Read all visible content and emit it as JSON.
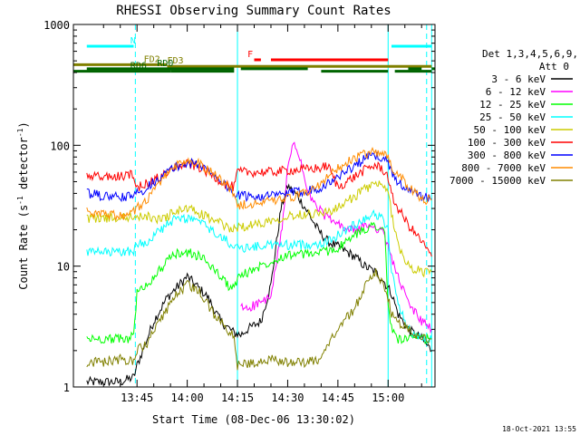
{
  "chart_data": {
    "type": "line",
    "title": "RHESSI Observing Summary Count Rates",
    "xlabel": "Start Time (08-Dec-06 13:30:02)",
    "ylabel": "Count Rate (s⁻¹ detector⁻¹)",
    "ylabel_parts": [
      "Count Rate (s",
      "-1",
      " detector",
      "-1",
      ")"
    ],
    "yscale": "log",
    "ylim": [
      1,
      1000
    ],
    "xlim_min": [
      0,
      67
    ],
    "x_ticks": [
      {
        "at": 15,
        "label": "13:45"
      },
      {
        "at": 30,
        "label": "14:00"
      },
      {
        "at": 45,
        "label": "14:15"
      },
      {
        "at": 60,
        "label": "14:30"
      },
      {
        "at": 75,
        "label": "14:45"
      },
      {
        "at": 90,
        "label": "15:00"
      }
    ],
    "y_ticks": [
      {
        "at": 1,
        "label": "1"
      },
      {
        "at": 10,
        "label": "10"
      },
      {
        "at": 100,
        "label": "100"
      },
      {
        "at": 1000,
        "label": "1000"
      }
    ],
    "legend_header": [
      "Det 1,3,4,5,6,9,",
      "Att 0"
    ],
    "legend_position": "right",
    "timestamp": "18-Oct-2021 13:55",
    "series": [
      {
        "name": "3 - 6 keV",
        "color": "#000000",
        "x": [
          0,
          10,
          14,
          15,
          20,
          24,
          30,
          36,
          40,
          44,
          46,
          48,
          52,
          55,
          58,
          60,
          63,
          66,
          69,
          72,
          76,
          80,
          83,
          86,
          88,
          91,
          93,
          96,
          100,
          103
        ],
        "y": [
          1.1,
          1.1,
          1.2,
          1.5,
          3.5,
          5.5,
          8.2,
          5.6,
          3.5,
          2.8,
          2.7,
          3,
          3.5,
          7,
          30,
          46,
          38,
          28,
          20,
          16,
          14,
          12,
          10,
          9,
          8,
          6,
          4,
          3,
          2.5,
          2
        ]
      },
      {
        "name": "6 - 12 keV",
        "color": "#ff00ff",
        "x": [
          46,
          48,
          52,
          55,
          58,
          60,
          61,
          62,
          63,
          64,
          66,
          69,
          72,
          75,
          78,
          81,
          84,
          86,
          88,
          91,
          93,
          96,
          100,
          103
        ],
        "y": [
          4.5,
          4.5,
          5,
          5.5,
          18,
          60,
          90,
          100,
          90,
          70,
          40,
          30,
          25,
          22,
          20,
          20,
          22,
          21,
          20,
          12,
          8,
          5,
          3.5,
          3
        ]
      },
      {
        "name": "12 - 25 keV",
        "color": "#00ff00",
        "x": [
          0,
          4,
          8,
          12,
          14,
          15,
          18,
          22,
          26,
          30,
          34,
          38,
          42,
          44,
          45,
          50,
          55,
          60,
          65,
          70,
          75,
          80,
          84,
          86,
          88,
          89,
          90,
          91,
          93,
          96,
          100,
          103
        ],
        "y": [
          2.5,
          2.5,
          2.5,
          2.5,
          2.7,
          6,
          7,
          9.5,
          12.5,
          13,
          12,
          9.5,
          7,
          6.5,
          8,
          9.5,
          11,
          12.5,
          12.5,
          13,
          14,
          18,
          21,
          22,
          21,
          18,
          5,
          3,
          2.5,
          2.5,
          2.5,
          2.5
        ]
      },
      {
        "name": "25 - 50 keV",
        "color": "#00ffff",
        "x": [
          0,
          5,
          10,
          14,
          15,
          18,
          22,
          26,
          30,
          34,
          38,
          42,
          44,
          45,
          50,
          55,
          60,
          65,
          70,
          72,
          75,
          80,
          84,
          86,
          88,
          90,
          91,
          93,
          96,
          100,
          103
        ],
        "y": [
          13,
          13,
          13,
          13.5,
          15,
          16,
          20,
          24,
          25,
          23,
          19,
          16,
          15,
          14,
          14.5,
          15,
          15,
          15,
          15.5,
          16,
          18,
          22,
          26,
          27,
          25,
          20,
          9,
          5,
          3,
          2.5,
          2.5
        ]
      },
      {
        "name": "50 - 100 keV",
        "color": "#cccc00",
        "x": [
          0,
          5,
          10,
          14,
          15,
          18,
          22,
          26,
          30,
          34,
          38,
          42,
          44,
          45,
          50,
          55,
          60,
          65,
          70,
          72,
          75,
          80,
          84,
          86,
          88,
          90,
          91,
          93,
          96,
          100,
          103
        ],
        "y": [
          25,
          25,
          25,
          26,
          25,
          26,
          24,
          28,
          30,
          27,
          24,
          21,
          20,
          21,
          22,
          24,
          26,
          27,
          28,
          28,
          30,
          38,
          45,
          48,
          46,
          40,
          28,
          15,
          10,
          9,
          9
        ]
      },
      {
        "name": "100 - 300 keV",
        "color": "#ff0000",
        "x": [
          0,
          5,
          10,
          14,
          15,
          18,
          22,
          26,
          30,
          34,
          38,
          42,
          44,
          45,
          50,
          55,
          60,
          65,
          70,
          72,
          75,
          80,
          84,
          86,
          88,
          90,
          91,
          93,
          96,
          100,
          103
        ],
        "y": [
          55,
          55,
          55,
          58,
          45,
          48,
          55,
          65,
          70,
          65,
          55,
          47,
          45,
          60,
          60,
          60,
          62,
          63,
          65,
          68,
          45,
          55,
          65,
          68,
          65,
          55,
          38,
          30,
          22,
          16,
          12
        ]
      },
      {
        "name": "300 - 800 keV",
        "color": "#0000ff",
        "x": [
          0,
          5,
          10,
          14,
          15,
          18,
          22,
          26,
          30,
          34,
          38,
          42,
          44,
          45,
          50,
          55,
          60,
          65,
          70,
          72,
          75,
          80,
          84,
          86,
          88,
          90,
          91,
          93,
          96,
          100,
          103
        ],
        "y": [
          40,
          38,
          37,
          38,
          40,
          45,
          55,
          65,
          72,
          68,
          58,
          45,
          40,
          38,
          38,
          38,
          40,
          42,
          45,
          48,
          55,
          68,
          80,
          82,
          80,
          72,
          60,
          50,
          42,
          38,
          36
        ]
      },
      {
        "name": "800 - 7000 keV",
        "color": "#ff8c00",
        "x": [
          0,
          5,
          10,
          14,
          15,
          18,
          22,
          26,
          30,
          34,
          38,
          42,
          44,
          45,
          50,
          55,
          60,
          65,
          70,
          72,
          75,
          80,
          84,
          86,
          88,
          90,
          91,
          93,
          96,
          100,
          103
        ],
        "y": [
          28,
          27,
          26,
          28,
          30,
          36,
          50,
          66,
          75,
          70,
          58,
          46,
          40,
          32,
          33,
          34,
          36,
          40,
          48,
          55,
          65,
          78,
          86,
          88,
          86,
          80,
          66,
          58,
          45,
          36,
          35
        ]
      },
      {
        "name": "7000 - 15000 keV",
        "color": "#808000",
        "x": [
          0,
          5,
          10,
          14,
          15,
          18,
          22,
          26,
          30,
          34,
          38,
          42,
          44,
          45,
          50,
          55,
          60,
          65,
          70,
          72,
          75,
          80,
          84,
          86,
          88,
          90,
          91,
          93,
          96,
          100,
          103
        ],
        "y": [
          1.6,
          1.6,
          1.7,
          1.6,
          2,
          2.3,
          3.5,
          5.5,
          7,
          6,
          4,
          3,
          2.6,
          1.5,
          1.6,
          1.7,
          1.6,
          1.6,
          1.7,
          2.2,
          3,
          4.5,
          7.5,
          9,
          7.5,
          5.5,
          4,
          3.5,
          3,
          2.5,
          2.5
        ]
      }
    ],
    "flag_bars": [
      {
        "label": "N",
        "color": "#00ffff",
        "y": 660,
        "segments": [
          [
            0,
            14
          ],
          [
            91,
            103
          ]
        ]
      },
      {
        "label": "F",
        "color": "#ff0000",
        "y": 510,
        "segments": [
          [
            50,
            52
          ],
          [
            55,
            90
          ]
        ]
      },
      {
        "label": "FD2",
        "color": "#808000",
        "y": 465,
        "segments": [
          [
            -4,
            24
          ]
        ]
      },
      {
        "label": "FD3",
        "color": "#808000",
        "y": 450,
        "segments": [
          [
            24,
            103
          ]
        ]
      },
      {
        "label": "RD0",
        "color": "#006400",
        "y": 430,
        "segments": [
          [
            0,
            44
          ],
          [
            46,
            66
          ],
          [
            96,
            100
          ],
          [
            103,
            104
          ]
        ]
      },
      {
        "label": "RD6",
        "color": "#006400",
        "y": 410,
        "segments": [
          [
            -4,
            25
          ],
          [
            25,
            44
          ],
          [
            70,
            90
          ],
          [
            92,
            103
          ]
        ]
      }
    ],
    "flag_label_x": {
      "N": 13,
      "F": 48,
      "FD2": 17,
      "FD3": 24,
      "RD0": 21,
      "RD6": 13
    },
    "vlines": [
      {
        "x": 14.5,
        "color": "#00ffff",
        "style": "dashed"
      },
      {
        "x": 45,
        "color": "#00ffff",
        "style": "solid"
      },
      {
        "x": 90,
        "color": "#00ffff",
        "style": "solid"
      },
      {
        "x": 101.5,
        "color": "#00ffff",
        "style": "dashed"
      },
      {
        "x": 103,
        "color": "#00ffff",
        "style": "solid"
      }
    ]
  }
}
